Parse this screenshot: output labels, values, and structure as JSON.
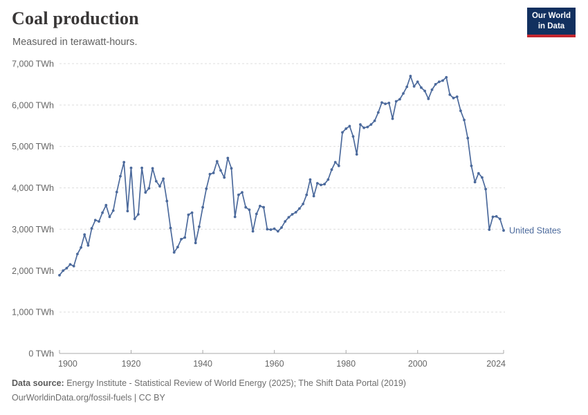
{
  "header": {
    "title": "Coal production",
    "subtitle": "Measured in terawatt-hours.",
    "logo": {
      "line1": "Our World",
      "line2": "in Data"
    }
  },
  "chart_data": {
    "type": "line",
    "title": "Coal production",
    "unit": "TWh",
    "xlabel": "",
    "ylabel": "",
    "xlim": [
      1900,
      2024
    ],
    "ylim": [
      0,
      7000
    ],
    "grid": "horizontal dashed",
    "x_ticks": [
      1900,
      1920,
      1940,
      1960,
      1980,
      2000,
      2024
    ],
    "y_ticks": [
      {
        "value": 0,
        "label": "0 TWh"
      },
      {
        "value": 1000,
        "label": "1,000 TWh"
      },
      {
        "value": 2000,
        "label": "2,000 TWh"
      },
      {
        "value": 3000,
        "label": "3,000 TWh"
      },
      {
        "value": 4000,
        "label": "4,000 TWh"
      },
      {
        "value": 5000,
        "label": "5,000 TWh"
      },
      {
        "value": 6000,
        "label": "6,000 TWh"
      },
      {
        "value": 7000,
        "label": "7,000 TWh"
      }
    ],
    "series": [
      {
        "name": "United States",
        "color": "#4c6a9c",
        "start_year": 1900,
        "end_year": 2024,
        "values": [
          1890,
          2000,
          2060,
          2150,
          2110,
          2400,
          2560,
          2870,
          2610,
          3020,
          3220,
          3190,
          3400,
          3580,
          3300,
          3450,
          3900,
          4280,
          4620,
          3440,
          4480,
          3250,
          3360,
          4480,
          3890,
          3990,
          4470,
          4160,
          4040,
          4220,
          3680,
          3030,
          2440,
          2570,
          2760,
          2800,
          3350,
          3400,
          2670,
          3060,
          3530,
          3980,
          4330,
          4360,
          4640,
          4420,
          4250,
          4720,
          4470,
          3300,
          3830,
          3890,
          3530,
          3470,
          2950,
          3370,
          3560,
          3530,
          3000,
          2990,
          3010,
          2950,
          3040,
          3190,
          3290,
          3360,
          3410,
          3500,
          3610,
          3830,
          4200,
          3800,
          4110,
          4070,
          4090,
          4200,
          4440,
          4620,
          4530,
          5340,
          5430,
          5490,
          5240,
          4810,
          5530,
          5450,
          5470,
          5530,
          5620,
          5820,
          6060,
          6030,
          6050,
          5670,
          6090,
          6140,
          6280,
          6440,
          6700,
          6450,
          6560,
          6420,
          6340,
          6150,
          6370,
          6500,
          6560,
          6590,
          6670,
          6250,
          6170,
          6200,
          5860,
          5640,
          5200,
          4530,
          4140,
          4350,
          4250,
          3970,
          2990,
          3300,
          3310,
          3250,
          2970
        ]
      }
    ],
    "series_end_label": "United States",
    "legend_position": "end-of-line"
  },
  "footer": {
    "datasource_label": "Data source:",
    "datasource_text": " Energy Institute - Statistical Review of World Energy (2025); The Shift Data Portal (2019)",
    "url": "OurWorldinData.org/fossil-fuels",
    "separator": " | ",
    "license": "CC BY"
  },
  "style": {
    "line_color": "#4c6a9c",
    "grid_color": "#dcdcdc",
    "axis_color": "#a8a8a8",
    "tick_label_color": "#666666",
    "logo_bg": "#12305f",
    "logo_accent": "#c4262e"
  }
}
